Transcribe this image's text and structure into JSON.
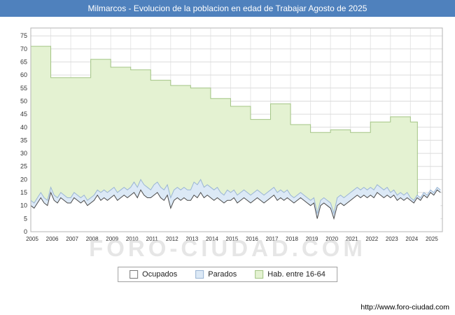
{
  "title": "Milmarcos - Evolucion de la poblacion en edad de Trabajar Agosto de 2025",
  "watermark": "FORO-CIUDAD.COM",
  "footer_url": "http://www.foro-ciudad.com",
  "colors": {
    "title_bar": "#4f81bd",
    "grid": "#dcdcdc",
    "plot_border": "#b4b4b4",
    "hab_fill": "#e4f2d2",
    "hab_stroke": "#a3c585",
    "parados_fill": "#dce9f6",
    "parados_stroke": "#9ab5d4",
    "ocupados_fill": "#ffffff",
    "ocupados_stroke": "#4a4a4a"
  },
  "legend": {
    "items": [
      {
        "label": "Ocupados",
        "fill": "#ffffff",
        "border": "#777777"
      },
      {
        "label": "Parados",
        "fill": "#dce9f6",
        "border": "#9ab5d4"
      },
      {
        "label": "Hab. entre 16-64",
        "fill": "#e4f2d2",
        "border": "#a3c585"
      }
    ]
  },
  "chart_data": {
    "type": "area",
    "title": "Milmarcos - Evolucion de la poblacion en edad de Trabajar Agosto de 2025",
    "xlabel": "",
    "ylabel": "",
    "xlim": [
      2005,
      2025.6
    ],
    "ylim": [
      0,
      78
    ],
    "x_ticks": [
      2005,
      2006,
      2007,
      2008,
      2009,
      2010,
      2011,
      2012,
      2013,
      2014,
      2015,
      2016,
      2017,
      2018,
      2019,
      2020,
      2021,
      2022,
      2023,
      2024,
      2025
    ],
    "y_ticks": [
      0,
      5,
      10,
      15,
      20,
      25,
      30,
      35,
      40,
      45,
      50,
      55,
      60,
      65,
      70,
      75
    ],
    "grid": true,
    "legend_position": "bottom-center",
    "series": [
      {
        "name": "Hab. entre 16-64",
        "render": "step-area",
        "step_years": [
          2005,
          2006,
          2007,
          2008,
          2009,
          2010,
          2011,
          2012,
          2013,
          2014,
          2015,
          2016,
          2017,
          2018,
          2019,
          2020,
          2021,
          2022,
          2023,
          2024
        ],
        "step_values": [
          71,
          59,
          59,
          66,
          63,
          62,
          58,
          56,
          55,
          51,
          48,
          43,
          49,
          41,
          38,
          39,
          38,
          42,
          44,
          42
        ],
        "step_end_x": 2024.35,
        "fill": "#e4f2d2",
        "stroke": "#a3c585"
      },
      {
        "name": "Parados",
        "render": "area",
        "x_start": 2005,
        "x_step": 0.1667,
        "values": [
          12,
          11,
          13,
          15,
          13,
          12,
          17,
          14,
          13,
          15,
          14,
          13,
          13,
          15,
          14,
          13,
          14,
          12,
          13,
          14,
          16,
          15,
          16,
          15,
          16,
          17,
          15,
          16,
          17,
          16,
          17,
          19,
          17,
          20,
          18,
          17,
          16,
          18,
          19,
          17,
          16,
          18,
          13,
          16,
          17,
          16,
          17,
          16,
          16,
          19,
          18,
          20,
          17,
          18,
          17,
          16,
          17,
          15,
          14,
          16,
          15,
          16,
          14,
          15,
          16,
          15,
          14,
          15,
          16,
          15,
          14,
          15,
          16,
          17,
          15,
          16,
          15,
          16,
          14,
          13,
          14,
          15,
          14,
          13,
          12,
          13,
          7,
          12,
          13,
          12,
          11,
          7,
          13,
          14,
          13,
          14,
          15,
          16,
          17,
          16,
          17,
          16,
          17,
          16,
          18,
          17,
          16,
          17,
          15,
          16,
          14,
          15,
          14,
          15,
          13,
          12,
          14,
          13,
          15,
          14,
          16,
          15,
          17,
          16
        ],
        "fill": "#dce9f6",
        "stroke": "#9ab5d4"
      },
      {
        "name": "Ocupados",
        "render": "area",
        "x_start": 2005,
        "x_step": 0.1667,
        "values": [
          10,
          9,
          11,
          13,
          11,
          10,
          15,
          12,
          11,
          13,
          12,
          11,
          11,
          13,
          12,
          11,
          12,
          10,
          11,
          12,
          14,
          12,
          13,
          12,
          13,
          14,
          12,
          13,
          14,
          13,
          14,
          15,
          13,
          16,
          14,
          13,
          13,
          14,
          15,
          13,
          12,
          14,
          9,
          12,
          13,
          12,
          13,
          12,
          12,
          14,
          13,
          15,
          13,
          14,
          13,
          12,
          13,
          12,
          11,
          12,
          12,
          13,
          11,
          12,
          13,
          12,
          11,
          12,
          13,
          12,
          11,
          12,
          13,
          14,
          12,
          13,
          12,
          13,
          12,
          11,
          12,
          13,
          12,
          11,
          10,
          11,
          5,
          10,
          11,
          10,
          9,
          5,
          10,
          11,
          10,
          11,
          12,
          13,
          14,
          13,
          14,
          13,
          14,
          13,
          15,
          14,
          13,
          14,
          13,
          14,
          12,
          13,
          12,
          13,
          12,
          11,
          13,
          12,
          14,
          13,
          15,
          14,
          16,
          15
        ],
        "fill": "#ffffff",
        "stroke": "#4a4a4a"
      }
    ]
  }
}
